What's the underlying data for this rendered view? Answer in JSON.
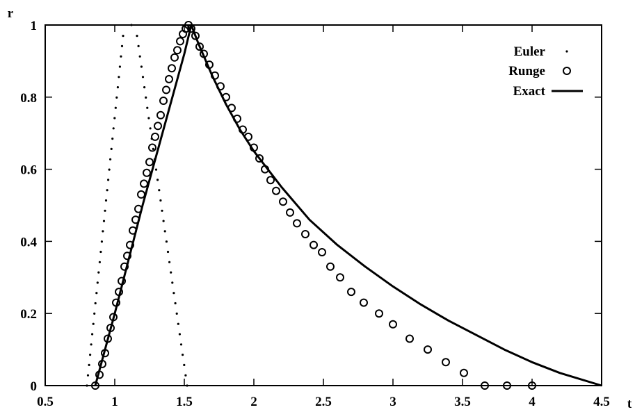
{
  "chart_data": {
    "type": "line",
    "xlabel": "t",
    "ylabel": "r",
    "xlim": [
      0.5,
      4.5
    ],
    "ylim": [
      0,
      1
    ],
    "x_ticks": [
      "0.5",
      "1",
      "1.5",
      "2",
      "2.5",
      "3",
      "3.5",
      "4",
      "4.5"
    ],
    "y_ticks": [
      "0",
      "0.2",
      "0.4",
      "0.6",
      "0.8",
      "1"
    ],
    "grid": false,
    "legend_position": "top-right",
    "series": [
      {
        "name": "Euler",
        "style": "dotted",
        "x": [
          0.8,
          1.06,
          1.12,
          1.16,
          1.52
        ],
        "y": [
          0.0,
          0.97,
          1.0,
          0.97,
          0.0
        ]
      },
      {
        "name": "Runge",
        "style": "circles",
        "x": [
          0.86,
          0.89,
          0.91,
          0.93,
          0.95,
          0.97,
          0.99,
          1.01,
          1.03,
          1.05,
          1.07,
          1.09,
          1.11,
          1.13,
          1.15,
          1.17,
          1.19,
          1.21,
          1.23,
          1.25,
          1.27,
          1.29,
          1.31,
          1.33,
          1.35,
          1.37,
          1.39,
          1.41,
          1.43,
          1.45,
          1.47,
          1.49,
          1.51,
          1.53,
          1.55,
          1.58,
          1.61,
          1.64,
          1.68,
          1.72,
          1.76,
          1.8,
          1.84,
          1.88,
          1.92,
          1.96,
          2.0,
          2.04,
          2.08,
          2.12,
          2.16,
          2.21,
          2.26,
          2.31,
          2.37,
          2.43,
          2.49,
          2.55,
          2.62,
          2.7,
          2.79,
          2.9,
          3.0,
          3.12,
          3.25,
          3.38,
          3.51,
          3.66,
          3.82,
          4.0
        ],
        "y": [
          0.0,
          0.03,
          0.06,
          0.09,
          0.13,
          0.16,
          0.19,
          0.23,
          0.26,
          0.29,
          0.33,
          0.36,
          0.39,
          0.43,
          0.46,
          0.49,
          0.53,
          0.56,
          0.59,
          0.62,
          0.66,
          0.69,
          0.72,
          0.75,
          0.79,
          0.82,
          0.85,
          0.88,
          0.91,
          0.93,
          0.955,
          0.975,
          0.99,
          1.0,
          0.99,
          0.97,
          0.94,
          0.92,
          0.89,
          0.86,
          0.83,
          0.8,
          0.77,
          0.74,
          0.71,
          0.69,
          0.66,
          0.63,
          0.6,
          0.57,
          0.54,
          0.51,
          0.48,
          0.45,
          0.42,
          0.39,
          0.37,
          0.33,
          0.3,
          0.26,
          0.23,
          0.2,
          0.17,
          0.13,
          0.1,
          0.065,
          0.035,
          0.0,
          0.0,
          0.0
        ]
      },
      {
        "name": "Exact",
        "style": "solid",
        "x": [
          0.86,
          1.0,
          1.1,
          1.2,
          1.3,
          1.4,
          1.5,
          1.55,
          1.6,
          1.7,
          1.8,
          1.9,
          2.0,
          2.2,
          2.4,
          2.6,
          2.8,
          3.0,
          3.2,
          3.4,
          3.6,
          3.8,
          4.0,
          4.2,
          4.5
        ],
        "y": [
          0.0,
          0.2,
          0.35,
          0.5,
          0.64,
          0.78,
          0.92,
          1.0,
          0.95,
          0.86,
          0.78,
          0.71,
          0.65,
          0.55,
          0.46,
          0.39,
          0.33,
          0.275,
          0.225,
          0.18,
          0.14,
          0.1,
          0.065,
          0.035,
          0.0
        ]
      }
    ]
  }
}
